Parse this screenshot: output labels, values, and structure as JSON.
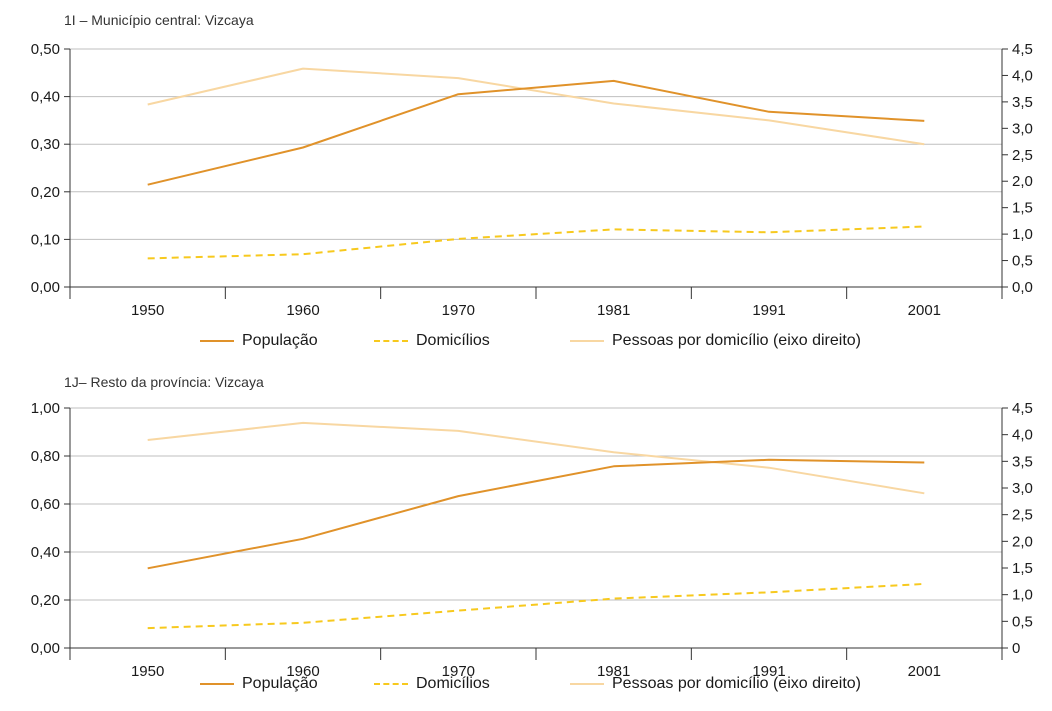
{
  "colors": {
    "population": "#e0922a",
    "households": "#f7c91e",
    "persons": "#f8d7a2",
    "grid": "#bfbfbf",
    "axis": "#333333"
  },
  "chart_data": [
    {
      "type": "line",
      "title": "1I – Município central: Vizcaya",
      "categories": [
        "1950",
        "1960",
        "1970",
        "1981",
        "1991",
        "2001"
      ],
      "ylim_left": [
        0,
        0.5
      ],
      "yticks_left": [
        "0,00",
        "0,10",
        "0,20",
        "0,30",
        "0,40",
        "0,50"
      ],
      "ylim_right": [
        0,
        4.5
      ],
      "yticks_right": [
        "0,0",
        "0,5",
        "1,0",
        "1,5",
        "2,0",
        "2,5",
        "3,0",
        "3,5",
        "4,0",
        "4,5"
      ],
      "grid": true,
      "legend_position": "bottom",
      "series": [
        {
          "name": "População",
          "axis": "left",
          "style": "solid",
          "values": [
            0.215,
            0.293,
            0.405,
            0.433,
            0.368,
            0.349
          ]
        },
        {
          "name": "Domicílios",
          "axis": "left",
          "style": "dashed",
          "values": [
            0.06,
            0.069,
            0.101,
            0.121,
            0.115,
            0.127
          ]
        },
        {
          "name": "Pessoas por domicílio (eixo direito)",
          "axis": "right",
          "style": "solid",
          "values": [
            3.45,
            4.13,
            3.95,
            3.47,
            3.15,
            2.7
          ]
        }
      ]
    },
    {
      "type": "line",
      "title": "1J– Resto da província: Vizcaya",
      "categories": [
        "1950",
        "1960",
        "1970",
        "1981",
        "1991",
        "2001"
      ],
      "ylim_left": [
        0,
        1.0
      ],
      "yticks_left": [
        "0,00",
        "0,20",
        "0,40",
        "0,60",
        "0,80",
        "1,00"
      ],
      "ylim_right": [
        0,
        4.5
      ],
      "yticks_right": [
        "0",
        "0,5",
        "1,0",
        "1,5",
        "2,0",
        "2,5",
        "3,0",
        "3,5",
        "4,0",
        "4,5"
      ],
      "grid": true,
      "legend_position": "bottom",
      "series": [
        {
          "name": "População",
          "axis": "left",
          "style": "solid",
          "values": [
            0.332,
            0.455,
            0.633,
            0.757,
            0.784,
            0.773
          ]
        },
        {
          "name": "Domicílios",
          "axis": "left",
          "style": "dashed",
          "values": [
            0.083,
            0.105,
            0.156,
            0.206,
            0.232,
            0.267
          ]
        },
        {
          "name": "Pessoas por domicílio (eixo direito)",
          "axis": "right",
          "style": "solid",
          "values": [
            3.9,
            4.22,
            4.07,
            3.67,
            3.38,
            2.9
          ]
        }
      ]
    }
  ]
}
